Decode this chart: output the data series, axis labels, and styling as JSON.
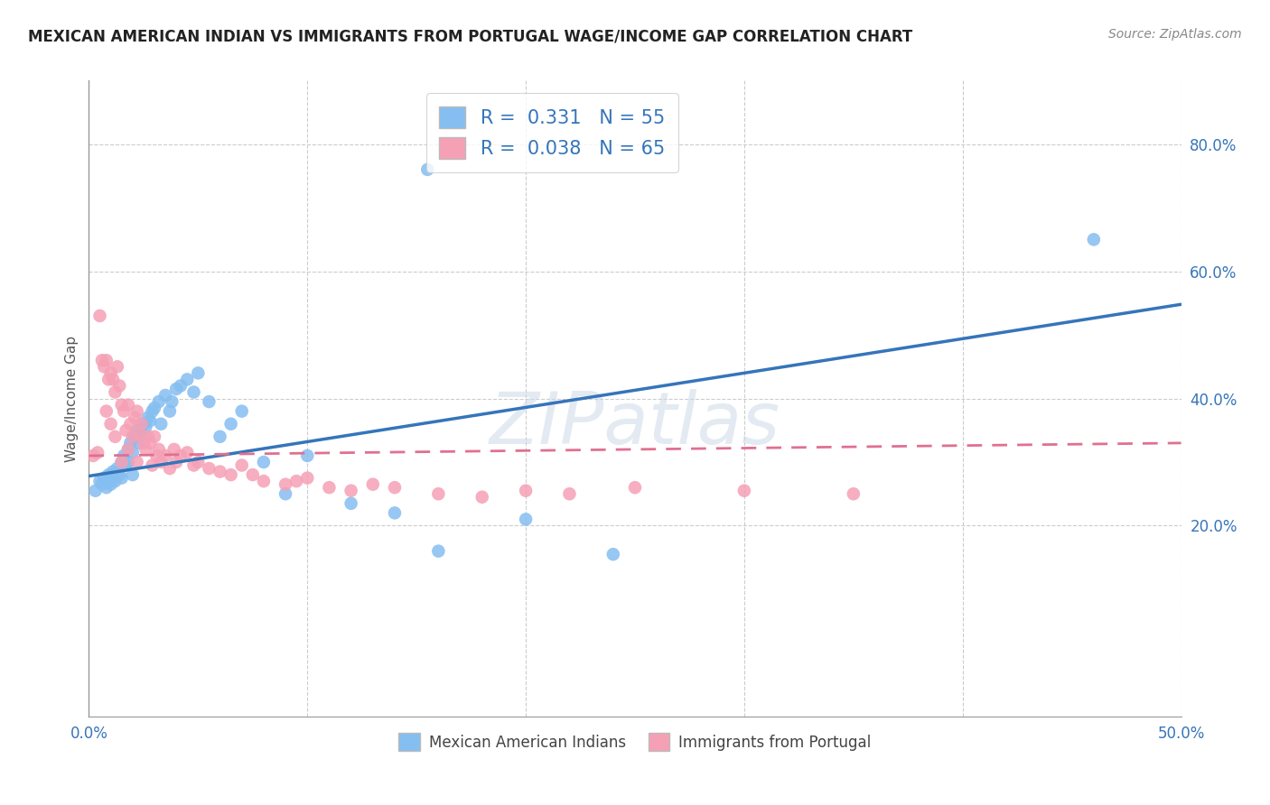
{
  "title": "MEXICAN AMERICAN INDIAN VS IMMIGRANTS FROM PORTUGAL WAGE/INCOME GAP CORRELATION CHART",
  "source": "Source: ZipAtlas.com",
  "ylabel": "Wage/Income Gap",
  "xlim": [
    0.0,
    0.5
  ],
  "ylim": [
    -0.1,
    0.9
  ],
  "ytick_positions": [
    0.2,
    0.4,
    0.6,
    0.8
  ],
  "ytick_labels_right": [
    "20.0%",
    "40.0%",
    "60.0%",
    "80.0%"
  ],
  "xtick_positions": [
    0.0,
    0.1,
    0.2,
    0.3,
    0.4,
    0.5
  ],
  "xtick_labels": [
    "0.0%",
    "",
    "",
    "",
    "",
    "50.0%"
  ],
  "blue_R": 0.331,
  "blue_N": 55,
  "pink_R": 0.038,
  "pink_N": 65,
  "blue_color": "#85BEF0",
  "pink_color": "#F5A0B5",
  "blue_line_color": "#3575BA",
  "pink_line_color": "#E07090",
  "watermark": "ZIPatlas",
  "legend_label_blue": "Mexican American Indians",
  "legend_label_pink": "Immigrants from Portugal",
  "blue_trend_x": [
    0.0,
    0.5
  ],
  "blue_trend_y": [
    0.278,
    0.548
  ],
  "pink_trend_x": [
    0.0,
    0.5
  ],
  "pink_trend_y": [
    0.31,
    0.33
  ],
  "blue_x": [
    0.003,
    0.005,
    0.006,
    0.007,
    0.008,
    0.009,
    0.01,
    0.01,
    0.011,
    0.012,
    0.013,
    0.014,
    0.015,
    0.015,
    0.016,
    0.017,
    0.018,
    0.018,
    0.019,
    0.02,
    0.02,
    0.021,
    0.022,
    0.023,
    0.024,
    0.025,
    0.026,
    0.027,
    0.028,
    0.029,
    0.03,
    0.032,
    0.033,
    0.035,
    0.037,
    0.038,
    0.04,
    0.042,
    0.045,
    0.048,
    0.05,
    0.055,
    0.06,
    0.065,
    0.07,
    0.08,
    0.09,
    0.1,
    0.12,
    0.14,
    0.16,
    0.2,
    0.24,
    0.155,
    0.46
  ],
  "blue_y": [
    0.255,
    0.27,
    0.265,
    0.275,
    0.26,
    0.28,
    0.275,
    0.265,
    0.285,
    0.27,
    0.29,
    0.28,
    0.3,
    0.275,
    0.31,
    0.295,
    0.32,
    0.3,
    0.33,
    0.315,
    0.28,
    0.34,
    0.35,
    0.33,
    0.345,
    0.36,
    0.355,
    0.37,
    0.365,
    0.38,
    0.385,
    0.395,
    0.36,
    0.405,
    0.38,
    0.395,
    0.415,
    0.42,
    0.43,
    0.41,
    0.44,
    0.395,
    0.34,
    0.36,
    0.38,
    0.3,
    0.25,
    0.31,
    0.235,
    0.22,
    0.16,
    0.21,
    0.155,
    0.76,
    0.65
  ],
  "pink_x": [
    0.002,
    0.004,
    0.005,
    0.006,
    0.007,
    0.008,
    0.008,
    0.009,
    0.01,
    0.01,
    0.011,
    0.012,
    0.012,
    0.013,
    0.014,
    0.015,
    0.015,
    0.016,
    0.017,
    0.018,
    0.018,
    0.019,
    0.02,
    0.021,
    0.022,
    0.022,
    0.023,
    0.024,
    0.025,
    0.026,
    0.027,
    0.028,
    0.029,
    0.03,
    0.031,
    0.032,
    0.033,
    0.035,
    0.037,
    0.039,
    0.04,
    0.042,
    0.045,
    0.048,
    0.05,
    0.055,
    0.06,
    0.065,
    0.07,
    0.075,
    0.08,
    0.09,
    0.095,
    0.1,
    0.11,
    0.12,
    0.13,
    0.14,
    0.16,
    0.18,
    0.2,
    0.22,
    0.25,
    0.3,
    0.35
  ],
  "pink_y": [
    0.31,
    0.315,
    0.53,
    0.46,
    0.45,
    0.46,
    0.38,
    0.43,
    0.44,
    0.36,
    0.43,
    0.41,
    0.34,
    0.45,
    0.42,
    0.39,
    0.3,
    0.38,
    0.35,
    0.39,
    0.32,
    0.36,
    0.34,
    0.37,
    0.38,
    0.3,
    0.345,
    0.36,
    0.33,
    0.32,
    0.34,
    0.33,
    0.295,
    0.34,
    0.31,
    0.32,
    0.3,
    0.31,
    0.29,
    0.32,
    0.3,
    0.31,
    0.315,
    0.295,
    0.3,
    0.29,
    0.285,
    0.28,
    0.295,
    0.28,
    0.27,
    0.265,
    0.27,
    0.275,
    0.26,
    0.255,
    0.265,
    0.26,
    0.25,
    0.245,
    0.255,
    0.25,
    0.26,
    0.255,
    0.25
  ]
}
